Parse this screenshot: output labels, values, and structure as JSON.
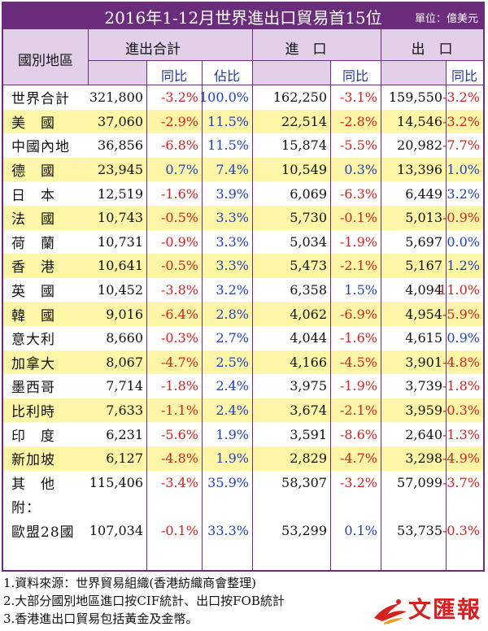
{
  "title": "2016年1-12月世界進出口貿易首15位",
  "unit": "單位：億美元",
  "headers": {
    "region": "國別地區",
    "total": "進出合計",
    "total_yoy": "同比",
    "share": "佔比",
    "imports": "進　口",
    "imports_yoy": "同比",
    "exports": "出　口",
    "exports_yoy": "同比"
  },
  "rows": [
    {
      "name": "世界合計",
      "total": "321,800",
      "total_yoy": "-3.2%",
      "share": "100.0%",
      "imp": "162,250",
      "imp_yoy": "-3.1%",
      "exp": "159,550",
      "exp_yoy": "-3.2%"
    },
    {
      "name": "美　國",
      "total": "37,060",
      "total_yoy": "-2.9%",
      "share": "11.5%",
      "imp": "22,514",
      "imp_yoy": "-2.8%",
      "exp": "14,546",
      "exp_yoy": "-3.2%"
    },
    {
      "name": "中國內地",
      "total": "36,856",
      "total_yoy": "-6.8%",
      "share": "11.5%",
      "imp": "15,874",
      "imp_yoy": "-5.5%",
      "exp": "20,982",
      "exp_yoy": "-7.7%"
    },
    {
      "name": "德　國",
      "total": "23,945",
      "total_yoy": "0.7%",
      "share": "7.4%",
      "imp": "10,549",
      "imp_yoy": "0.3%",
      "exp": "13,396",
      "exp_yoy": "1.0%"
    },
    {
      "name": "日　本",
      "total": "12,519",
      "total_yoy": "-1.6%",
      "share": "3.9%",
      "imp": "6,069",
      "imp_yoy": "-6.3%",
      "exp": "6,449",
      "exp_yoy": "3.2%"
    },
    {
      "name": "法　國",
      "total": "10,743",
      "total_yoy": "-0.5%",
      "share": "3.3%",
      "imp": "5,730",
      "imp_yoy": "-0.1%",
      "exp": "5,013",
      "exp_yoy": "-0.9%"
    },
    {
      "name": "荷　蘭",
      "total": "10,731",
      "total_yoy": "-0.9%",
      "share": "3.3%",
      "imp": "5,034",
      "imp_yoy": "-1.9%",
      "exp": "5,697",
      "exp_yoy": "0.0%"
    },
    {
      "name": "香　港",
      "total": "10,641",
      "total_yoy": "-0.5%",
      "share": "3.3%",
      "imp": "5,473",
      "imp_yoy": "-2.1%",
      "exp": "5,167",
      "exp_yoy": "1.2%"
    },
    {
      "name": "英　國",
      "total": "10,452",
      "total_yoy": "-3.8%",
      "share": "3.2%",
      "imp": "6,358",
      "imp_yoy": "1.5%",
      "exp": "4,094",
      "exp_yoy": "-11.0%"
    },
    {
      "name": "韓　國",
      "total": "9,016",
      "total_yoy": "-6.4%",
      "share": "2.8%",
      "imp": "4,062",
      "imp_yoy": "-6.9%",
      "exp": "4,954",
      "exp_yoy": "-5.9%"
    },
    {
      "name": "意大利",
      "total": "8,660",
      "total_yoy": "-0.3%",
      "share": "2.7%",
      "imp": "4,044",
      "imp_yoy": "-1.6%",
      "exp": "4,615",
      "exp_yoy": "0.9%"
    },
    {
      "name": "加拿大",
      "total": "8,067",
      "total_yoy": "-4.7%",
      "share": "2.5%",
      "imp": "4,166",
      "imp_yoy": "-4.5%",
      "exp": "3,901",
      "exp_yoy": "-4.8%"
    },
    {
      "name": "墨西哥",
      "total": "7,714",
      "total_yoy": "-1.8%",
      "share": "2.4%",
      "imp": "3,975",
      "imp_yoy": "-1.9%",
      "exp": "3,739",
      "exp_yoy": "-1.8%"
    },
    {
      "name": "比利時",
      "total": "7,633",
      "total_yoy": "-1.1%",
      "share": "2.4%",
      "imp": "3,674",
      "imp_yoy": "-2.1%",
      "exp": "3,959",
      "exp_yoy": "-0.3%"
    },
    {
      "name": "印　度",
      "total": "6,231",
      "total_yoy": "-5.6%",
      "share": "1.9%",
      "imp": "3,591",
      "imp_yoy": "-8.6%",
      "exp": "2,640",
      "exp_yoy": "-1.3%"
    },
    {
      "name": "新加坡",
      "total": "6,127",
      "total_yoy": "-4.8%",
      "share": "1.9%",
      "imp": "2,829",
      "imp_yoy": "-4.7%",
      "exp": "3,298",
      "exp_yoy": "-4.9%"
    },
    {
      "name": "其　他",
      "total": "115,406",
      "total_yoy": "-3.4%",
      "share": "35.9%",
      "imp": "58,307",
      "imp_yoy": "-3.2%",
      "exp": "57,099",
      "exp_yoy": "-3.7%"
    },
    {
      "name": "附：",
      "total": "",
      "total_yoy": "",
      "share": "",
      "imp": "",
      "imp_yoy": "",
      "exp": "",
      "exp_yoy": ""
    },
    {
      "name": "歐盟28國",
      "total": "107,034",
      "total_yoy": "-0.1%",
      "share": "33.3%",
      "imp": "53,299",
      "imp_yoy": "0.1%",
      "exp": "53,735",
      "exp_yoy": "-0.3%"
    }
  ],
  "notes": [
    "1.資料來源：世界貿易組織(香港紡織商會整理)",
    "2.大部分國別地區進口按CIF統計、出口按FOB統計",
    "3.香港進出口貿易包括黃金及金幣。"
  ],
  "logo": "文匯報",
  "colors": {
    "header_bg": "#6b2d7b",
    "subheader_bg": "#e2cfe8",
    "highlight_row": "#fdf6a6",
    "negative": "#d8201e",
    "positive": "#1e3fbf"
  }
}
